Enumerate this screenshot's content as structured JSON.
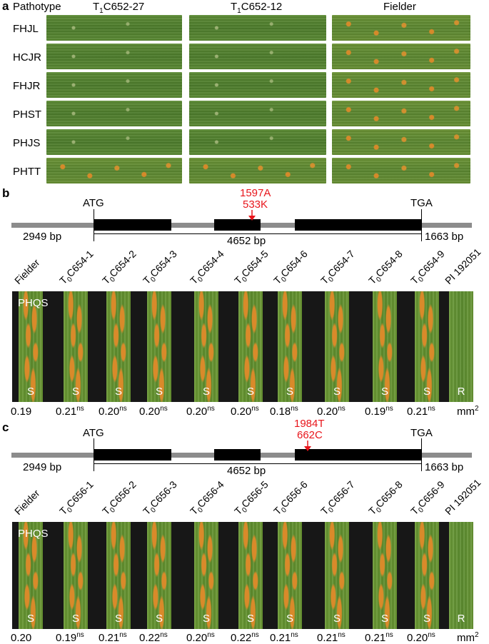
{
  "panel_a": {
    "letter": "a",
    "header": "Pathotype",
    "columns": [
      "T1C652-27",
      "T1C652-12",
      "Fielder"
    ],
    "col_parts": [
      [
        "T",
        "1",
        "C652-27"
      ],
      [
        "T",
        "1",
        "C652-12"
      ],
      [
        "",
        "",
        "Fielder"
      ]
    ],
    "rows": [
      "FHJL",
      "HCJR",
      "FHJR",
      "PHST",
      "PHJS",
      "PHTT"
    ]
  },
  "panel_b": {
    "letter": "b",
    "atg": "ATG",
    "tga": "TGA",
    "mutation_1": "1597A",
    "mutation_2": "533K",
    "left_bp": "2949 bp",
    "mid_bp": "4652 bp",
    "right_bp": "1663 bp",
    "pathotype": "PHQS",
    "lines": [
      {
        "name": "Fielder",
        "pre": "",
        "sub": "",
        "post": "Fielder",
        "rx": "S",
        "area": "0.19",
        "sig": ""
      },
      {
        "name": "T0C654-1",
        "pre": "T",
        "sub": "0",
        "post": "C654-1",
        "rx": "S",
        "area": "0.21",
        "sig": "ns"
      },
      {
        "name": "T0C654-2",
        "pre": "T",
        "sub": "0",
        "post": "C654-2",
        "rx": "S",
        "area": "0.20",
        "sig": "ns"
      },
      {
        "name": "T0C654-3",
        "pre": "T",
        "sub": "0",
        "post": "C654-3",
        "rx": "S",
        "area": "0.20",
        "sig": "ns"
      },
      {
        "name": "T0C654-4",
        "pre": "T",
        "sub": "0",
        "post": "C654-4",
        "rx": "S",
        "area": "0.20",
        "sig": "ns"
      },
      {
        "name": "T0C654-5",
        "pre": "T",
        "sub": "0",
        "post": "C654-5",
        "rx": "S",
        "area": "0.20",
        "sig": "ns"
      },
      {
        "name": "T0C654-6",
        "pre": "T",
        "sub": "0",
        "post": "C654-6",
        "rx": "S",
        "area": "0.18",
        "sig": "ns"
      },
      {
        "name": "T0C654-7",
        "pre": "T",
        "sub": "0",
        "post": "C654-7",
        "rx": "S",
        "area": "0.20",
        "sig": "ns"
      },
      {
        "name": "T0C654-8",
        "pre": "T",
        "sub": "0",
        "post": "C654-8",
        "rx": "S",
        "area": "0.19",
        "sig": "ns"
      },
      {
        "name": "T0C654-9",
        "pre": "T",
        "sub": "0",
        "post": "C654-9",
        "rx": "S",
        "area": "0.21",
        "sig": "ns"
      },
      {
        "name": "PI 192051",
        "pre": "",
        "sub": "",
        "post": "PI 192051",
        "rx": "R",
        "area": "",
        "sig": ""
      }
    ],
    "unit": "mm",
    "unit_sup": "2"
  },
  "panel_c": {
    "letter": "c",
    "atg": "ATG",
    "tga": "TGA",
    "mutation_1": "1984T",
    "mutation_2": "662C",
    "left_bp": "2949 bp",
    "mid_bp": "4652 bp",
    "right_bp": "1663 bp",
    "pathotype": "PHQS",
    "lines": [
      {
        "name": "Fielder",
        "pre": "",
        "sub": "",
        "post": "Fielder",
        "rx": "S",
        "area": "0.20",
        "sig": ""
      },
      {
        "name": "T0C656-1",
        "pre": "T",
        "sub": "0",
        "post": "C656-1",
        "rx": "S",
        "area": "0.19",
        "sig": "ns"
      },
      {
        "name": "T0C656-2",
        "pre": "T",
        "sub": "0",
        "post": "C656-2",
        "rx": "S",
        "area": "0.21",
        "sig": "ns"
      },
      {
        "name": "T0C656-3",
        "pre": "T",
        "sub": "0",
        "post": "C656-3",
        "rx": "S",
        "area": "0.22",
        "sig": "ns"
      },
      {
        "name": "T0C656-4",
        "pre": "T",
        "sub": "0",
        "post": "C656-4",
        "rx": "S",
        "area": "0.20",
        "sig": "ns"
      },
      {
        "name": "T0C656-5",
        "pre": "T",
        "sub": "0",
        "post": "C656-5",
        "rx": "S",
        "area": "0.22",
        "sig": "ns"
      },
      {
        "name": "T0C656-6",
        "pre": "T",
        "sub": "0",
        "post": "C656-6",
        "rx": "S",
        "area": "0.21",
        "sig": "ns"
      },
      {
        "name": "T0C656-7",
        "pre": "T",
        "sub": "0",
        "post": "C656-7",
        "rx": "S",
        "area": "0.21",
        "sig": "ns"
      },
      {
        "name": "T0C656-8",
        "pre": "T",
        "sub": "0",
        "post": "C656-8",
        "rx": "S",
        "area": "0.21",
        "sig": "ns"
      },
      {
        "name": "T0C656-9",
        "pre": "T",
        "sub": "0",
        "post": "C656-9",
        "rx": "S",
        "area": "0.20",
        "sig": "ns"
      },
      {
        "name": "PI 192051",
        "pre": "",
        "sub": "",
        "post": "PI 192051",
        "rx": "R",
        "area": "",
        "sig": ""
      }
    ],
    "unit": "mm",
    "unit_sup": "2"
  },
  "colors": {
    "mutation": "#e8151b",
    "exon": "#000000",
    "intron": "#8c8c8c",
    "background": "#171717"
  }
}
